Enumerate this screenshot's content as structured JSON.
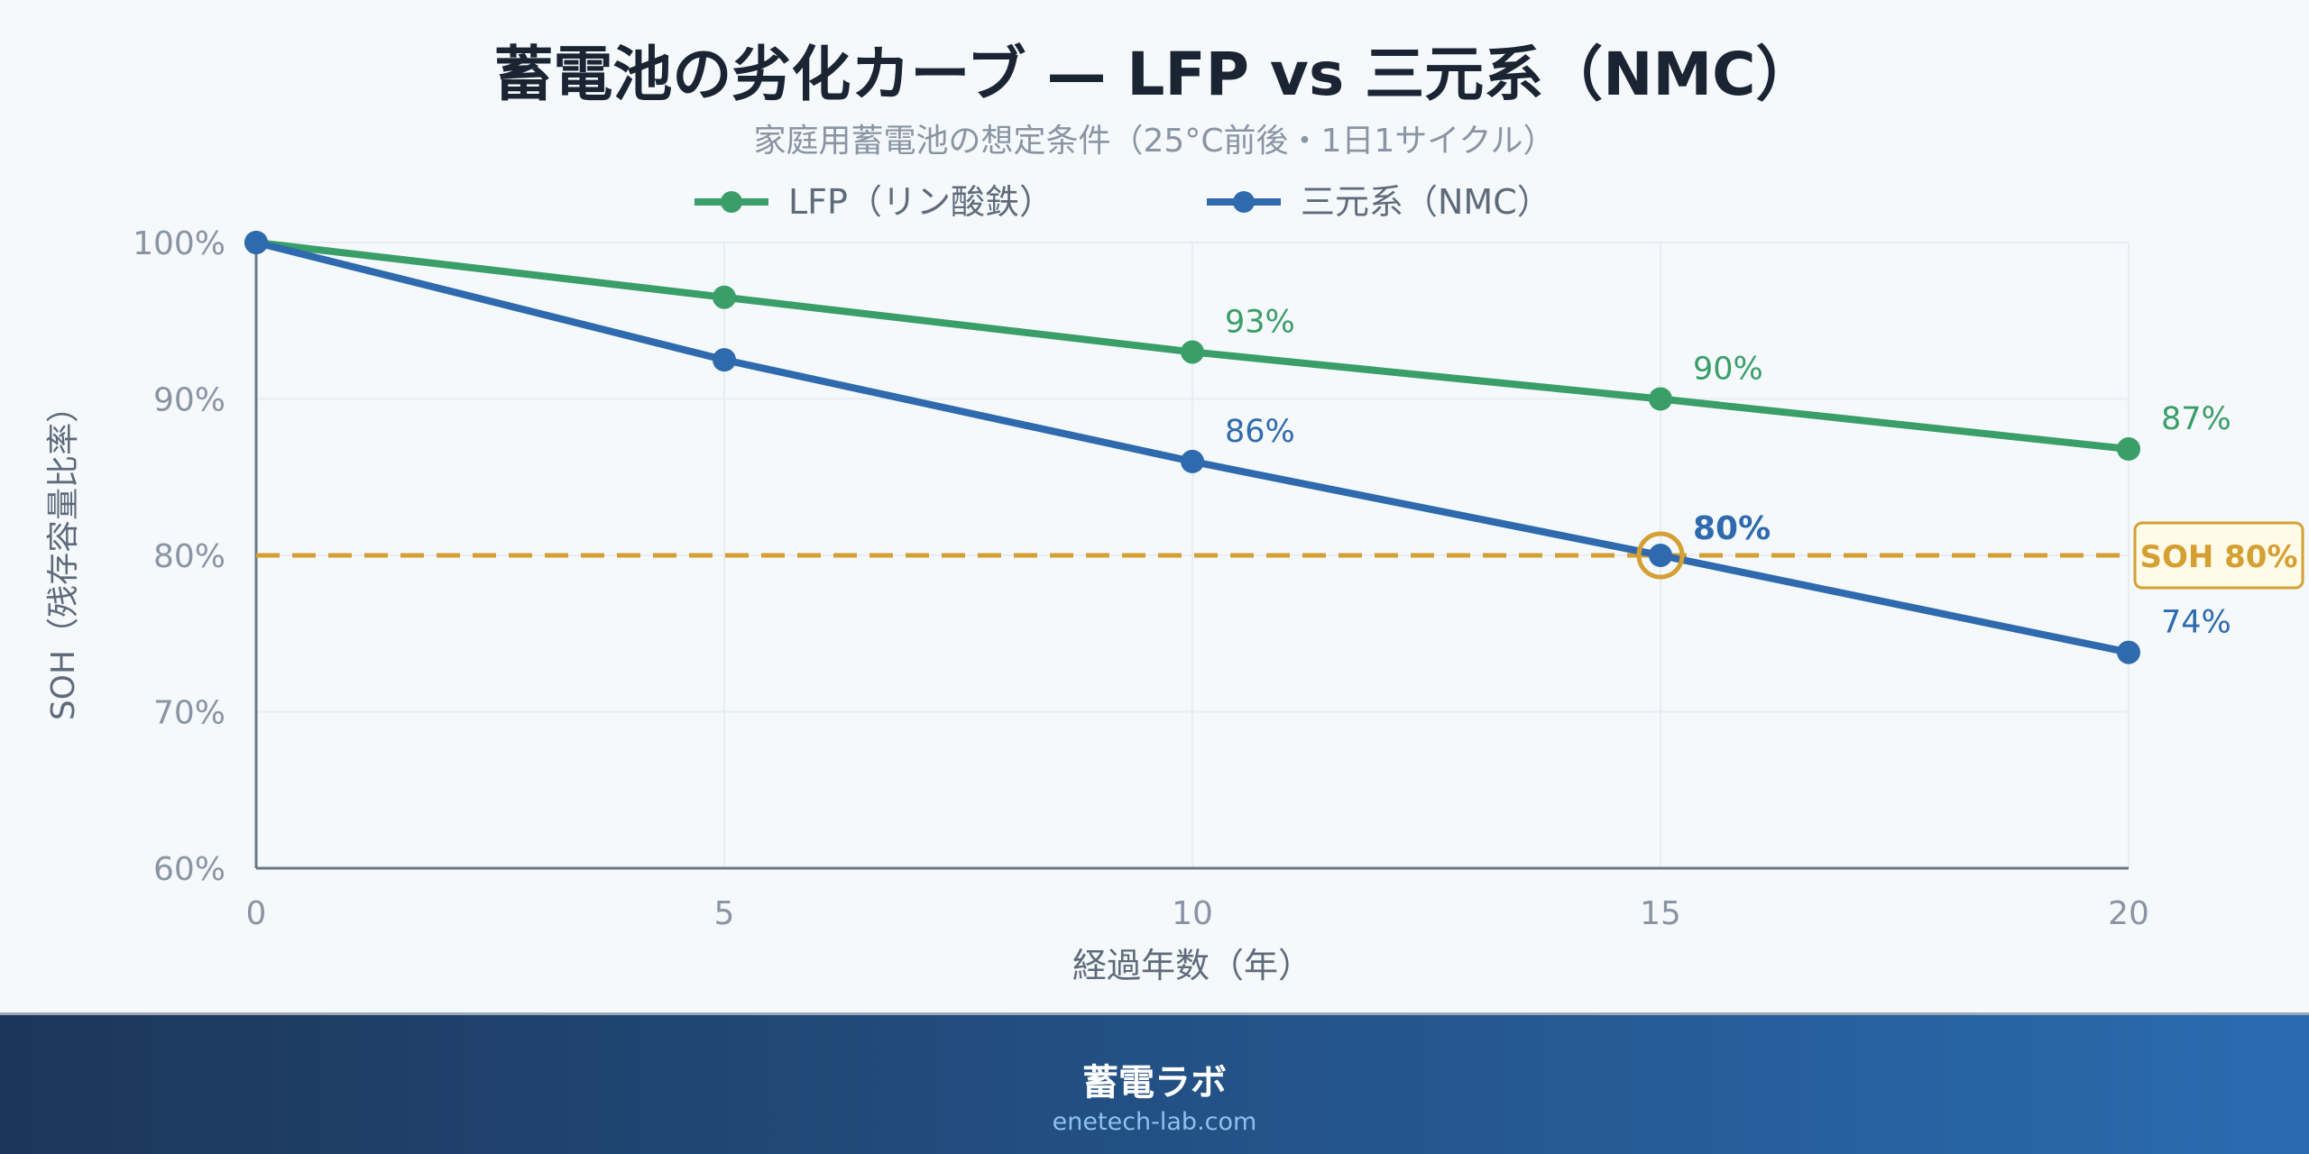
{
  "chart_data": {
    "type": "line",
    "title": "蓄電池の劣化カーブ — LFP vs 三元系（NMC）",
    "subtitle": "家庭用蓄電池の想定条件（25°C前後・1日1サイクル）",
    "xlabel": "経過年数（年）",
    "ylabel": "SOH（残存容量比率）",
    "x": [
      0,
      5,
      10,
      15,
      20
    ],
    "xticks": [
      "0",
      "5",
      "10",
      "15",
      "20"
    ],
    "yticks": [
      "60%",
      "70%",
      "80%",
      "90%",
      "100%"
    ],
    "ylim": [
      60,
      100
    ],
    "xlim": [
      0,
      20
    ],
    "grid": true,
    "legend_position": "top-center",
    "series": [
      {
        "name": "LFP（リン酸鉄）",
        "color": "#3a9e68",
        "values": [
          100,
          96.5,
          93,
          90,
          86.8
        ],
        "labels": [
          null,
          null,
          "93%",
          "90%",
          "87%"
        ]
      },
      {
        "name": "三元系（NMC）",
        "color": "#2e6aad",
        "values": [
          100,
          92.5,
          86,
          80,
          73.8
        ],
        "labels": [
          null,
          null,
          "86%",
          "80%",
          "74%"
        ]
      }
    ],
    "threshold": {
      "value": 80,
      "label": "SOH 80%",
      "color": "#d4a033",
      "highlight_x": 15
    }
  },
  "footer": {
    "brand": "蓄電ラボ",
    "url": "enetech-lab.com"
  }
}
